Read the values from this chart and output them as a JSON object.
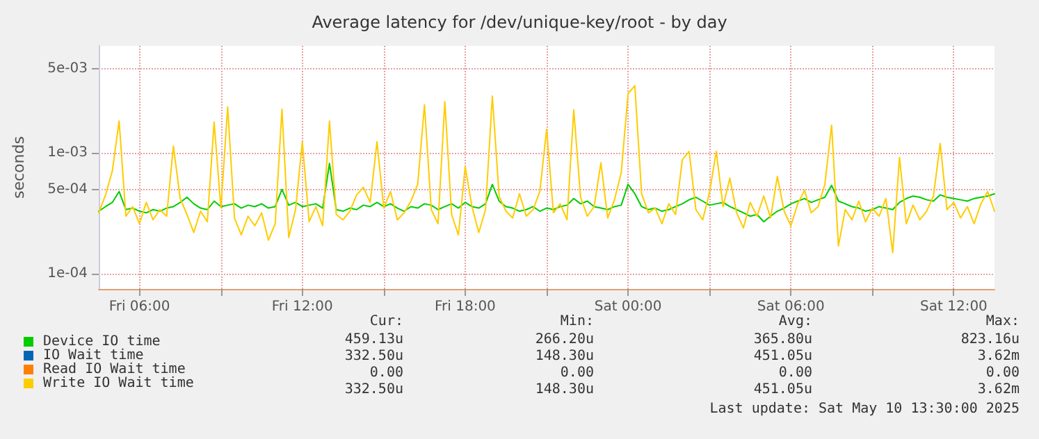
{
  "chart_data": {
    "type": "line",
    "title": "Average latency for /dev/unique-key/root - by day",
    "ylabel": "seconds",
    "x": [
      "2025-05-09T04:30",
      "2025-05-09T04:45",
      "2025-05-09T05:00",
      "2025-05-09T05:15",
      "2025-05-09T05:30",
      "2025-05-09T05:45",
      "2025-05-09T06:00",
      "2025-05-09T06:15",
      "2025-05-09T06:30",
      "2025-05-09T06:45",
      "2025-05-09T07:00",
      "2025-05-09T07:15",
      "2025-05-09T07:30",
      "2025-05-09T07:45",
      "2025-05-09T08:00",
      "2025-05-09T08:15",
      "2025-05-09T08:30",
      "2025-05-09T08:45",
      "2025-05-09T09:00",
      "2025-05-09T09:15",
      "2025-05-09T09:30",
      "2025-05-09T09:45",
      "2025-05-09T10:00",
      "2025-05-09T10:15",
      "2025-05-09T10:30",
      "2025-05-09T10:45",
      "2025-05-09T11:00",
      "2025-05-09T11:15",
      "2025-05-09T11:30",
      "2025-05-09T11:45",
      "2025-05-09T12:00",
      "2025-05-09T12:15",
      "2025-05-09T12:30",
      "2025-05-09T12:45",
      "2025-05-09T13:00",
      "2025-05-09T13:15",
      "2025-05-09T13:30",
      "2025-05-09T13:45",
      "2025-05-09T14:00",
      "2025-05-09T14:15",
      "2025-05-09T14:30",
      "2025-05-09T14:45",
      "2025-05-09T15:00",
      "2025-05-09T15:15",
      "2025-05-09T15:30",
      "2025-05-09T15:45",
      "2025-05-09T16:00",
      "2025-05-09T16:15",
      "2025-05-09T16:30",
      "2025-05-09T16:45",
      "2025-05-09T17:00",
      "2025-05-09T17:15",
      "2025-05-09T17:30",
      "2025-05-09T17:45",
      "2025-05-09T18:00",
      "2025-05-09T18:15",
      "2025-05-09T18:30",
      "2025-05-09T18:45",
      "2025-05-09T19:00",
      "2025-05-09T19:15",
      "2025-05-09T19:30",
      "2025-05-09T19:45",
      "2025-05-09T20:00",
      "2025-05-09T20:15",
      "2025-05-09T20:30",
      "2025-05-09T20:45",
      "2025-05-09T21:00",
      "2025-05-09T21:15",
      "2025-05-09T21:30",
      "2025-05-09T21:45",
      "2025-05-09T22:00",
      "2025-05-09T22:15",
      "2025-05-09T22:30",
      "2025-05-09T22:45",
      "2025-05-09T23:00",
      "2025-05-09T23:15",
      "2025-05-09T23:30",
      "2025-05-09T23:45",
      "2025-05-10T00:00",
      "2025-05-10T00:15",
      "2025-05-10T00:30",
      "2025-05-10T00:45",
      "2025-05-10T01:00",
      "2025-05-10T01:15",
      "2025-05-10T01:30",
      "2025-05-10T01:45",
      "2025-05-10T02:00",
      "2025-05-10T02:15",
      "2025-05-10T02:30",
      "2025-05-10T02:45",
      "2025-05-10T03:00",
      "2025-05-10T03:15",
      "2025-05-10T03:30",
      "2025-05-10T03:45",
      "2025-05-10T04:00",
      "2025-05-10T04:15",
      "2025-05-10T04:30",
      "2025-05-10T04:45",
      "2025-05-10T05:00",
      "2025-05-10T05:15",
      "2025-05-10T05:30",
      "2025-05-10T05:45",
      "2025-05-10T06:00",
      "2025-05-10T06:15",
      "2025-05-10T06:30",
      "2025-05-10T06:45",
      "2025-05-10T07:00",
      "2025-05-10T07:15",
      "2025-05-10T07:30",
      "2025-05-10T07:45",
      "2025-05-10T08:00",
      "2025-05-10T08:15",
      "2025-05-10T08:30",
      "2025-05-10T08:45",
      "2025-05-10T09:00",
      "2025-05-10T09:15",
      "2025-05-10T09:30",
      "2025-05-10T09:45",
      "2025-05-10T10:00",
      "2025-05-10T10:15",
      "2025-05-10T10:30",
      "2025-05-10T10:45",
      "2025-05-10T11:00",
      "2025-05-10T11:15",
      "2025-05-10T11:30",
      "2025-05-10T11:45",
      "2025-05-10T12:00",
      "2025-05-10T12:15",
      "2025-05-10T12:30",
      "2025-05-10T12:45",
      "2025-05-10T13:00",
      "2025-05-10T13:15",
      "2025-05-10T13:30"
    ],
    "series": [
      {
        "name": "Device IO time",
        "color": "#00cc00",
        "values": [
          0.00033,
          0.00036,
          0.00039,
          0.00048,
          0.00034,
          0.00035,
          0.00033,
          0.00032,
          0.00034,
          0.00033,
          0.00035,
          0.00036,
          0.00039,
          0.00043,
          0.00038,
          0.00035,
          0.00034,
          0.0004,
          0.00036,
          0.00037,
          0.00038,
          0.00035,
          0.00037,
          0.00036,
          0.00038,
          0.00035,
          0.00036,
          0.0005,
          0.00037,
          0.00039,
          0.00036,
          0.00037,
          0.00038,
          0.00035,
          0.00082,
          0.00034,
          0.00033,
          0.00035,
          0.00034,
          0.00037,
          0.00036,
          0.00039,
          0.00036,
          0.00038,
          0.00035,
          0.00033,
          0.00036,
          0.00035,
          0.00038,
          0.00037,
          0.00034,
          0.00036,
          0.00038,
          0.00035,
          0.00039,
          0.00036,
          0.00035,
          0.00038,
          0.00055,
          0.0004,
          0.00036,
          0.00035,
          0.00033,
          0.00034,
          0.00036,
          0.00033,
          0.00035,
          0.00034,
          0.00036,
          0.00037,
          0.00042,
          0.00038,
          0.0004,
          0.00036,
          0.00035,
          0.00034,
          0.00036,
          0.00037,
          0.00055,
          0.00046,
          0.00036,
          0.00034,
          0.00035,
          0.00033,
          0.00034,
          0.00036,
          0.00038,
          0.00041,
          0.00043,
          0.0004,
          0.00037,
          0.00038,
          0.00039,
          0.00036,
          0.00034,
          0.00032,
          0.0003,
          0.00031,
          0.00027,
          0.0003,
          0.00033,
          0.00035,
          0.00038,
          0.0004,
          0.00042,
          0.00039,
          0.00041,
          0.00043,
          0.00054,
          0.0004,
          0.00038,
          0.00036,
          0.00035,
          0.00033,
          0.00034,
          0.00036,
          0.00035,
          0.00034,
          0.00039,
          0.00042,
          0.00044,
          0.00043,
          0.00041,
          0.0004,
          0.00045,
          0.00043,
          0.00042,
          0.00041,
          0.0004,
          0.00042,
          0.00043,
          0.00044,
          0.00046
        ]
      },
      {
        "name": "IO Wait time",
        "color": "#0066b3",
        "values": [
          null,
          null,
          null,
          null,
          null,
          null,
          null,
          null,
          null,
          null,
          null,
          null,
          null,
          null,
          null,
          null,
          null,
          null,
          null,
          null,
          null,
          null,
          null,
          null,
          null,
          null,
          null,
          null,
          null,
          null,
          null,
          null,
          null,
          null,
          null,
          null,
          null,
          null,
          null,
          null,
          null,
          null,
          null,
          null,
          null,
          null,
          null,
          null,
          null,
          null,
          null,
          null,
          null,
          null,
          null,
          null,
          null,
          null,
          null,
          null,
          null,
          null,
          null,
          null,
          null,
          null,
          null,
          null,
          null,
          null,
          null,
          null,
          null,
          null,
          null,
          null,
          null,
          null,
          null,
          null,
          null,
          null,
          null,
          null,
          null,
          null,
          null,
          null,
          null,
          null,
          null,
          null,
          null,
          null,
          null,
          null,
          null,
          null,
          null,
          null,
          null,
          null,
          null,
          null,
          null,
          null,
          null,
          null,
          null,
          null,
          null,
          null,
          null,
          null,
          null,
          null,
          null,
          null,
          null,
          null,
          null,
          null,
          null,
          null,
          null,
          null,
          null,
          null,
          null,
          null,
          null,
          null,
          null
        ]
      },
      {
        "name": "Read IO Wait time",
        "color": "#ff8000",
        "values": [
          null,
          null,
          null,
          null,
          null,
          null,
          null,
          null,
          null,
          null,
          null,
          null,
          null,
          null,
          null,
          null,
          null,
          null,
          null,
          null,
          null,
          null,
          null,
          null,
          null,
          null,
          null,
          null,
          null,
          null,
          null,
          null,
          null,
          null,
          null,
          null,
          null,
          null,
          null,
          null,
          null,
          null,
          null,
          null,
          null,
          null,
          null,
          null,
          null,
          null,
          null,
          null,
          null,
          null,
          null,
          null,
          null,
          null,
          null,
          null,
          null,
          null,
          null,
          null,
          null,
          null,
          null,
          null,
          null,
          null,
          null,
          null,
          null,
          null,
          null,
          null,
          null,
          null,
          null,
          null,
          null,
          null,
          null,
          null,
          null,
          null,
          null,
          null,
          null,
          null,
          null,
          null,
          null,
          null,
          null,
          null,
          null,
          null,
          null,
          null,
          null,
          null,
          null,
          null,
          null,
          null,
          null,
          null,
          null,
          null,
          null,
          null,
          null,
          null,
          null,
          null,
          null,
          null,
          null,
          null,
          null,
          null,
          null,
          null,
          null,
          null,
          null,
          null,
          null,
          null,
          null,
          null,
          null
        ]
      },
      {
        "name": "Write IO Wait time",
        "color": "#ffcc00",
        "values": [
          0.00032,
          0.00045,
          0.00071,
          0.00184,
          0.0003,
          0.00036,
          0.00026,
          0.00039,
          0.00028,
          0.00034,
          0.0003,
          0.00114,
          0.00042,
          0.00031,
          0.00022,
          0.00033,
          0.00027,
          0.0018,
          0.00035,
          0.0024,
          0.00029,
          0.00021,
          0.0003,
          0.00025,
          0.00032,
          0.00019,
          0.00026,
          0.0023,
          0.0002,
          0.00034,
          0.00124,
          0.00027,
          0.00036,
          0.00025,
          0.00184,
          0.00031,
          0.00028,
          0.00033,
          0.00045,
          0.00052,
          0.00039,
          0.00124,
          0.00035,
          0.00048,
          0.00028,
          0.00032,
          0.0004,
          0.00055,
          0.0025,
          0.00034,
          0.00026,
          0.00266,
          0.00031,
          0.00021,
          0.00077,
          0.00036,
          0.00022,
          0.00034,
          0.00296,
          0.00044,
          0.00033,
          0.00029,
          0.00046,
          0.0003,
          0.00034,
          0.00048,
          0.00157,
          0.00032,
          0.00038,
          0.00028,
          0.00227,
          0.00043,
          0.0003,
          0.00036,
          0.00083,
          0.00029,
          0.00041,
          0.00069,
          0.0031,
          0.0036,
          0.00046,
          0.00032,
          0.00035,
          0.00026,
          0.00038,
          0.00031,
          0.00088,
          0.00103,
          0.00034,
          0.00028,
          0.00047,
          0.00103,
          0.00036,
          0.00062,
          0.00032,
          0.00024,
          0.00039,
          0.0003,
          0.00044,
          0.00029,
          0.00064,
          0.00033,
          0.00025,
          0.00038,
          0.00049,
          0.00032,
          0.00036,
          0.00055,
          0.0017,
          0.00017,
          0.00034,
          0.00028,
          0.0004,
          0.00027,
          0.00035,
          0.0003,
          0.00042,
          0.00015,
          0.00092,
          0.00026,
          0.00037,
          0.00028,
          0.00033,
          0.00044,
          0.0012,
          0.00034,
          0.00039,
          0.00029,
          0.00036,
          0.00026,
          0.00038,
          0.00048,
          0.00033
        ]
      }
    ],
    "xlim": [
      "2025-05-09T04:30",
      "2025-05-10T13:30"
    ],
    "xticks": [
      {
        "value": "2025-05-09T06:00",
        "label": "Fri 06:00"
      },
      {
        "value": "2025-05-09T09:00",
        "label": null
      },
      {
        "value": "2025-05-09T12:00",
        "label": "Fri 12:00"
      },
      {
        "value": "2025-05-09T15:00",
        "label": null
      },
      {
        "value": "2025-05-09T18:00",
        "label": "Fri 18:00"
      },
      {
        "value": "2025-05-09T21:00",
        "label": null
      },
      {
        "value": "2025-05-10T00:00",
        "label": "Sat 00:00"
      },
      {
        "value": "2025-05-10T03:00",
        "label": null
      },
      {
        "value": "2025-05-10T06:00",
        "label": "Sat 06:00"
      },
      {
        "value": "2025-05-10T09:00",
        "label": null
      },
      {
        "value": "2025-05-10T12:00",
        "label": "Sat 12:00"
      }
    ],
    "ylim": [
      7.5e-05,
      0.0077
    ],
    "yticks": [
      {
        "value": 0.0001,
        "label": "1e-04"
      },
      {
        "value": 0.0005,
        "label": "5e-04"
      },
      {
        "value": 0.001,
        "label": "1e-03"
      },
      {
        "value": 0.005,
        "label": "5e-03"
      }
    ],
    "log": "y",
    "grid": true,
    "legend": "bottom left",
    "marker": "none",
    "line_style": "solid",
    "annotations": [
      "Cur:",
      "Min:",
      "Avg:",
      "Max:",
      "459.13u",
      "266.20u",
      "365.80u",
      "823.16u",
      "332.50u",
      "148.30u",
      "451.05u",
      "3.62m",
      "0.00",
      "0.00",
      "0.00",
      "0.00",
      "332.50u",
      "148.30u",
      "451.05u",
      "3.62m",
      "Last update: Sat May 10 13:30:00 2025"
    ]
  }
}
